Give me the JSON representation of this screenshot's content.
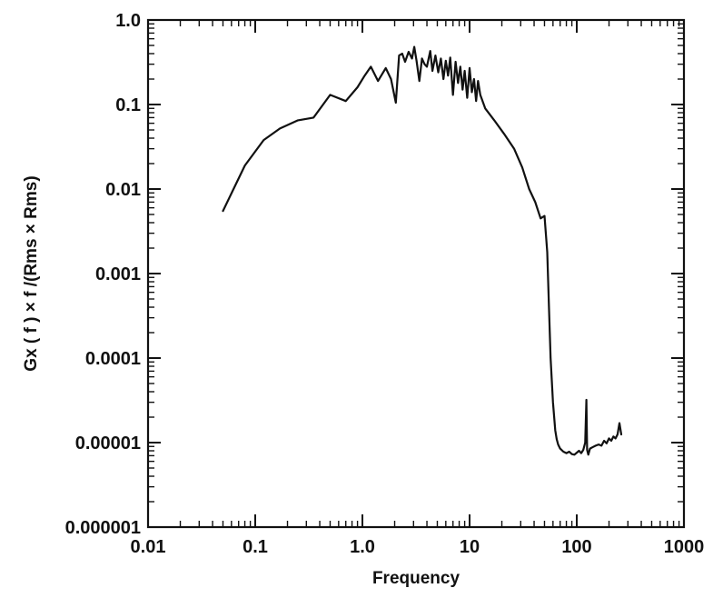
{
  "chart_data": {
    "type": "line",
    "title": "",
    "xlabel": "Frequency",
    "ylabel": "Gx   ( f ) × f /(Rms × Rms)",
    "x_scale": "log",
    "y_scale": "log",
    "xlim": [
      0.01,
      1000
    ],
    "ylim": [
      1e-06,
      1.0
    ],
    "grid": false,
    "x_ticks": [
      {
        "value": 0.01,
        "label": "0.01"
      },
      {
        "value": 0.1,
        "label": "0.1"
      },
      {
        "value": 1,
        "label": "1.0"
      },
      {
        "value": 10,
        "label": "10"
      },
      {
        "value": 100,
        "label": "100"
      },
      {
        "value": 1000,
        "label": "1000"
      }
    ],
    "y_ticks": [
      {
        "value": 1e-06,
        "label": "0.000001"
      },
      {
        "value": 1e-05,
        "label": "0.00001"
      },
      {
        "value": 0.0001,
        "label": "0.0001"
      },
      {
        "value": 0.001,
        "label": "0.001"
      },
      {
        "value": 0.01,
        "label": "0.01"
      },
      {
        "value": 0.1,
        "label": "0.1"
      },
      {
        "value": 1,
        "label": "1.0"
      }
    ],
    "series": [
      {
        "color": "#111111",
        "x": [
          0.05,
          0.08,
          0.12,
          0.17,
          0.25,
          0.35,
          0.5,
          0.7,
          0.9,
          1.05,
          1.2,
          1.4,
          1.65,
          1.85,
          2.05,
          2.2,
          2.35,
          2.5,
          2.7,
          2.9,
          3.05,
          3.2,
          3.4,
          3.6,
          3.8,
          4.0,
          4.3,
          4.5,
          4.8,
          5.1,
          5.4,
          5.7,
          6.0,
          6.3,
          6.6,
          7.0,
          7.4,
          7.8,
          8.2,
          8.6,
          9.0,
          9.5,
          10.0,
          10.5,
          11.0,
          11.5,
          12.0,
          12.6,
          14,
          17,
          21,
          26,
          31,
          36,
          41,
          46,
          50,
          53,
          55,
          57,
          60,
          63,
          65,
          67,
          70,
          75,
          80,
          85,
          90,
          95,
          100,
          105,
          110,
          115,
          120,
          123,
          125,
          128,
          133,
          140,
          150,
          160,
          170,
          180,
          190,
          200,
          210,
          220,
          230,
          240,
          250,
          260
        ],
        "values": [
          0.0055,
          0.019,
          0.038,
          0.052,
          0.065,
          0.07,
          0.13,
          0.11,
          0.16,
          0.22,
          0.28,
          0.19,
          0.27,
          0.2,
          0.105,
          0.38,
          0.4,
          0.32,
          0.42,
          0.35,
          0.48,
          0.33,
          0.19,
          0.35,
          0.3,
          0.28,
          0.43,
          0.25,
          0.38,
          0.24,
          0.35,
          0.2,
          0.33,
          0.22,
          0.36,
          0.13,
          0.32,
          0.18,
          0.28,
          0.15,
          0.25,
          0.12,
          0.27,
          0.14,
          0.2,
          0.11,
          0.19,
          0.13,
          0.09,
          0.065,
          0.045,
          0.03,
          0.018,
          0.01,
          0.007,
          0.0045,
          0.0048,
          0.0018,
          0.0004,
          0.0001,
          3e-05,
          1.4e-05,
          1.1e-05,
          9.5e-06,
          8.5e-06,
          7.8e-06,
          7.5e-06,
          7.8e-06,
          7.3e-06,
          7.2e-06,
          7.6e-06,
          8e-06,
          7.5e-06,
          8.2e-06,
          1e-05,
          3.2e-05,
          8.2e-06,
          7.2e-06,
          8.5e-06,
          8.8e-06,
          9.2e-06,
          9.5e-06,
          9.2e-06,
          1.05e-05,
          9.8e-06,
          1.12e-05,
          1.05e-05,
          1.18e-05,
          1.12e-05,
          1.25e-05,
          1.7e-05,
          1.25e-05
        ]
      }
    ]
  }
}
